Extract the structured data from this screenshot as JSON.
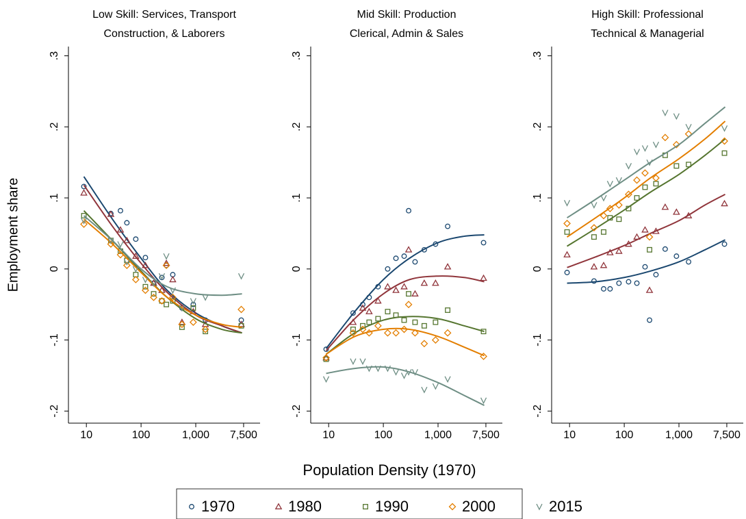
{
  "chart_data": [
    {
      "type": "scatter",
      "title": [
        "Low Skill: Services, Transport",
        "Construction, & Laborers"
      ],
      "ylabel": "Employment share",
      "log_x": true,
      "xlim": [
        4.7,
        15000
      ],
      "ylim": [
        -0.217,
        0.313
      ],
      "xticks": [
        10,
        100,
        {
          "value": 1000,
          "label": "1,000"
        },
        {
          "value": 7500,
          "label": "7,500"
        }
      ],
      "yticks": [
        {
          "value": 0.3,
          "label": ".3"
        },
        {
          "value": 0.2,
          "label": ".2"
        },
        {
          "value": 0.1,
          "label": ".1"
        },
        0,
        {
          "value": -0.1,
          "label": "-.1"
        },
        {
          "value": -0.2,
          "label": "-.2"
        }
      ],
      "x": [
        9,
        28,
        42,
        55,
        80,
        120,
        170,
        240,
        290,
        380,
        560,
        900,
        1500,
        6800
      ],
      "fit_x": [
        9,
        30,
        100,
        300,
        1000,
        3000,
        7000
      ],
      "series": [
        {
          "name": "1970",
          "color": "#1a476f",
          "marker": "circle",
          "values": [
            0.116,
            0.078,
            0.082,
            0.065,
            0.042,
            0.016,
            -0.02,
            -0.012,
            0.005,
            -0.008,
            -0.055,
            -0.05,
            -0.072,
            -0.072
          ],
          "fit": [
            0.13,
            0.07,
            0.015,
            -0.03,
            -0.062,
            -0.08,
            -0.09
          ]
        },
        {
          "name": "1980",
          "color": "#90353b",
          "marker": "triangle",
          "values": [
            0.107,
            0.077,
            0.055,
            0.04,
            0.018,
            0.005,
            -0.02,
            -0.03,
            0.008,
            -0.015,
            -0.075,
            -0.06,
            -0.078,
            -0.078
          ],
          "fit": [
            0.118,
            0.06,
            0.008,
            -0.033,
            -0.065,
            -0.08,
            -0.09
          ]
        },
        {
          "name": "1990",
          "color": "#55752f",
          "marker": "square",
          "values": [
            0.075,
            0.04,
            0.025,
            0.012,
            -0.008,
            -0.025,
            -0.035,
            -0.045,
            -0.05,
            -0.045,
            -0.082,
            -0.055,
            -0.088,
            -0.08
          ],
          "fit": [
            0.082,
            0.04,
            -0.003,
            -0.04,
            -0.07,
            -0.085,
            -0.09
          ]
        },
        {
          "name": "2000",
          "color": "#e37e00",
          "marker": "diamond",
          "values": [
            0.063,
            0.035,
            0.02,
            0.005,
            -0.015,
            -0.03,
            -0.04,
            -0.045,
            0.005,
            -0.04,
            -0.078,
            -0.075,
            -0.085,
            -0.057
          ],
          "fit": [
            0.07,
            0.035,
            -0.005,
            -0.04,
            -0.065,
            -0.078,
            -0.082
          ]
        },
        {
          "name": "2015",
          "color": "#6e8e84",
          "marker": "vee",
          "values": [
            0.068,
            0.04,
            0.035,
            0.01,
            0.0,
            -0.015,
            -0.02,
            -0.01,
            0.018,
            -0.03,
            -0.055,
            -0.045,
            -0.04,
            -0.01
          ],
          "fit": [
            0.075,
            0.04,
            0.0,
            -0.025,
            -0.035,
            -0.037,
            -0.035
          ]
        }
      ]
    },
    {
      "type": "scatter",
      "title": [
        "Mid Skill: Production",
        "Clerical, Admin & Sales"
      ],
      "xlabel": "Population Density (1970)",
      "log_x": true,
      "xlim": [
        4.7,
        15000
      ],
      "ylim": [
        -0.217,
        0.313
      ],
      "xticks": [
        10,
        100,
        {
          "value": 1000,
          "label": "1,000"
        },
        {
          "value": 7500,
          "label": "7,500"
        }
      ],
      "yticks": [
        {
          "value": 0.3,
          "label": ".3"
        },
        {
          "value": 0.2,
          "label": ".2"
        },
        {
          "value": 0.1,
          "label": ".1"
        },
        0,
        {
          "value": -0.1,
          "label": "-.1"
        },
        {
          "value": -0.2,
          "label": "-.2"
        }
      ],
      "x": [
        9,
        28,
        42,
        55,
        80,
        120,
        170,
        240,
        290,
        380,
        560,
        900,
        1500,
        6800
      ],
      "fit_x": [
        9,
        30,
        100,
        300,
        1000,
        3000,
        7000
      ],
      "series": [
        {
          "name": "1970",
          "color": "#1a476f",
          "marker": "circle",
          "values": [
            -0.113,
            -0.062,
            -0.05,
            -0.04,
            -0.025,
            0.0,
            0.015,
            0.018,
            0.082,
            0.01,
            0.027,
            0.035,
            0.06,
            0.037
          ],
          "fit": [
            -0.112,
            -0.06,
            -0.015,
            0.015,
            0.037,
            0.046,
            0.048
          ]
        },
        {
          "name": "1980",
          "color": "#90353b",
          "marker": "triangle",
          "values": [
            -0.125,
            -0.075,
            -0.055,
            -0.06,
            -0.045,
            -0.025,
            -0.03,
            -0.025,
            0.027,
            -0.035,
            -0.02,
            -0.02,
            0.003,
            -0.013
          ],
          "fit": [
            -0.115,
            -0.07,
            -0.035,
            -0.015,
            -0.01,
            -0.012,
            -0.018
          ]
        },
        {
          "name": "1990",
          "color": "#55752f",
          "marker": "square",
          "values": [
            -0.127,
            -0.085,
            -0.08,
            -0.075,
            -0.07,
            -0.06,
            -0.065,
            -0.072,
            -0.035,
            -0.075,
            -0.08,
            -0.075,
            -0.058,
            -0.088
          ],
          "fit": [
            -0.12,
            -0.09,
            -0.072,
            -0.067,
            -0.07,
            -0.08,
            -0.088
          ]
        },
        {
          "name": "2000",
          "color": "#e37e00",
          "marker": "diamond",
          "values": [
            -0.125,
            -0.09,
            -0.085,
            -0.09,
            -0.08,
            -0.09,
            -0.09,
            -0.085,
            -0.05,
            -0.09,
            -0.105,
            -0.1,
            -0.09,
            -0.123
          ],
          "fit": [
            -0.12,
            -0.095,
            -0.085,
            -0.085,
            -0.095,
            -0.11,
            -0.122
          ]
        },
        {
          "name": "2015",
          "color": "#6e8e84",
          "marker": "vee",
          "values": [
            -0.155,
            -0.13,
            -0.13,
            -0.14,
            -0.14,
            -0.14,
            -0.145,
            -0.15,
            -0.145,
            -0.145,
            -0.17,
            -0.165,
            -0.155,
            -0.185
          ],
          "fit": [
            -0.147,
            -0.14,
            -0.138,
            -0.145,
            -0.16,
            -0.178,
            -0.192
          ]
        }
      ]
    },
    {
      "type": "scatter",
      "title": [
        "High Skill: Professional",
        "Technical & Managerial"
      ],
      "log_x": true,
      "xlim": [
        4.7,
        15000
      ],
      "ylim": [
        -0.217,
        0.313
      ],
      "xticks": [
        10,
        100,
        {
          "value": 1000,
          "label": "1,000"
        },
        {
          "value": 7500,
          "label": "7,500"
        }
      ],
      "yticks": [
        {
          "value": 0.3,
          "label": ".3"
        },
        {
          "value": 0.2,
          "label": ".2"
        },
        {
          "value": 0.1,
          "label": ".1"
        },
        0,
        {
          "value": -0.1,
          "label": "-.1"
        },
        {
          "value": -0.2,
          "label": "-.2"
        }
      ],
      "x": [
        9,
        28,
        42,
        55,
        80,
        120,
        170,
        240,
        290,
        380,
        560,
        900,
        1500,
        6800
      ],
      "fit_x": [
        9,
        30,
        100,
        300,
        1000,
        3000,
        7000
      ],
      "series": [
        {
          "name": "1970",
          "color": "#1a476f",
          "marker": "circle",
          "values": [
            -0.005,
            -0.017,
            -0.028,
            -0.028,
            -0.02,
            -0.018,
            -0.02,
            0.003,
            -0.072,
            -0.008,
            0.028,
            0.018,
            0.01,
            0.035
          ],
          "fit": [
            -0.02,
            -0.018,
            -0.012,
            -0.003,
            0.01,
            0.027,
            0.041
          ]
        },
        {
          "name": "1980",
          "color": "#90353b",
          "marker": "triangle",
          "values": [
            0.02,
            0.003,
            0.005,
            0.023,
            0.025,
            0.035,
            0.045,
            0.055,
            -0.03,
            0.053,
            0.087,
            0.08,
            0.075,
            0.092
          ],
          "fit": [
            0.002,
            0.017,
            0.033,
            0.05,
            0.068,
            0.09,
            0.105
          ]
        },
        {
          "name": "1990",
          "color": "#55752f",
          "marker": "square",
          "values": [
            0.052,
            0.045,
            0.052,
            0.072,
            0.07,
            0.085,
            0.1,
            0.115,
            0.027,
            0.12,
            0.16,
            0.145,
            0.147,
            0.163
          ],
          "fit": [
            0.032,
            0.057,
            0.083,
            0.108,
            0.133,
            0.16,
            0.183
          ]
        },
        {
          "name": "2000",
          "color": "#e37e00",
          "marker": "diamond",
          "values": [
            0.064,
            0.058,
            0.075,
            0.085,
            0.09,
            0.105,
            0.125,
            0.135,
            0.045,
            0.128,
            0.185,
            0.175,
            0.19,
            0.18
          ],
          "fit": [
            0.045,
            0.072,
            0.1,
            0.128,
            0.155,
            0.183,
            0.208
          ]
        },
        {
          "name": "2015",
          "color": "#6e8e84",
          "marker": "vee",
          "values": [
            0.093,
            0.09,
            0.1,
            0.12,
            0.125,
            0.145,
            0.165,
            0.17,
            0.15,
            0.175,
            0.22,
            0.215,
            0.2,
            0.198
          ],
          "fit": [
            0.072,
            0.098,
            0.125,
            0.15,
            0.175,
            0.205,
            0.228
          ]
        }
      ]
    }
  ]
}
